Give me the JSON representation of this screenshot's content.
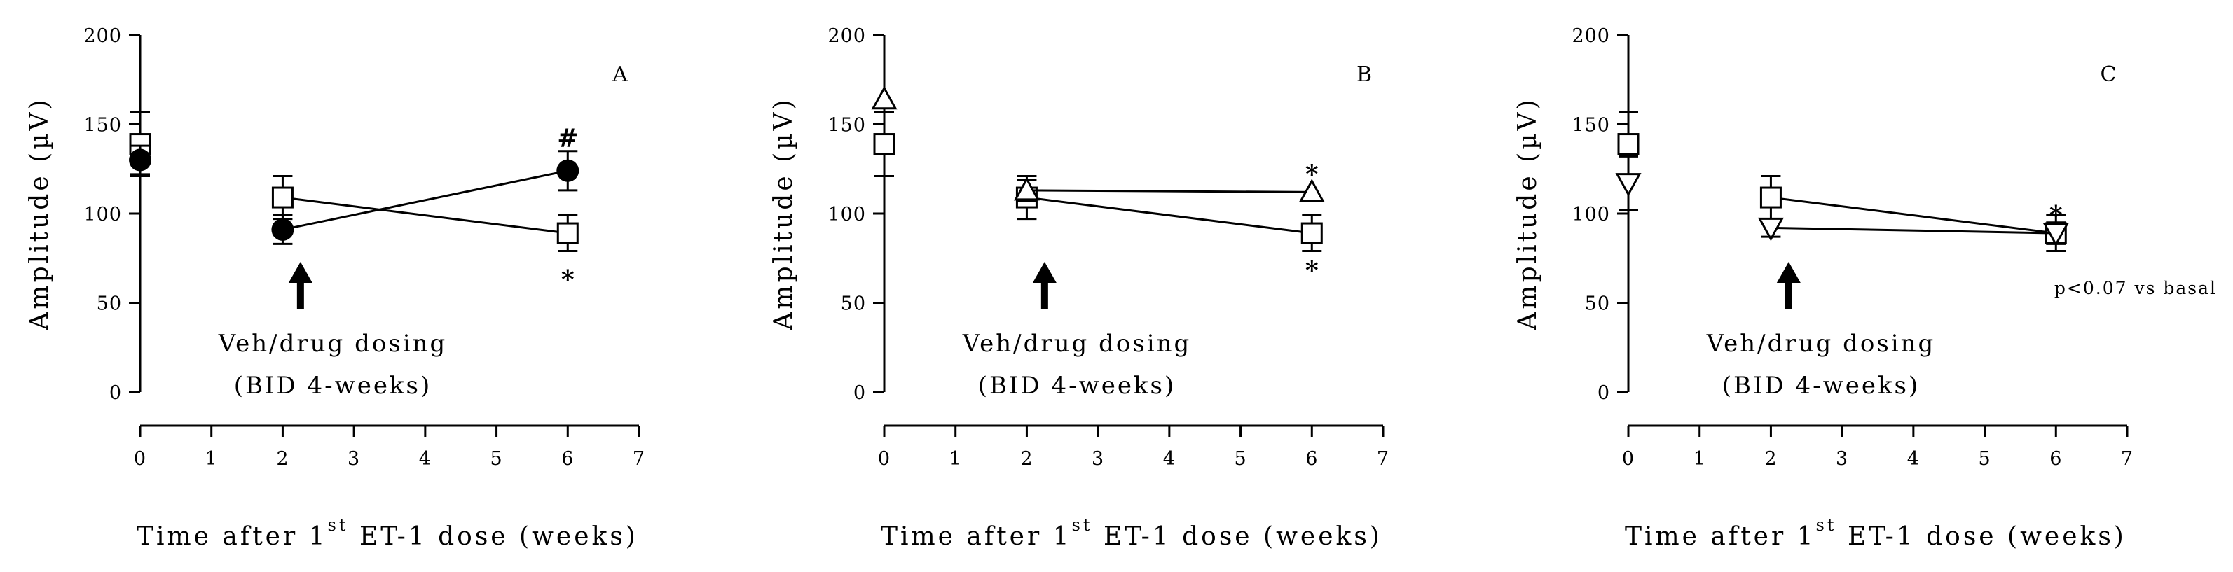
{
  "chart_data": [
    {
      "type": "line",
      "panel_label": "A",
      "xlabel_prefix": "Time after 1",
      "xlabel_sup": "st",
      "xlabel_suffix": " ET-1 dose (weeks)",
      "ylabel": "Amplitude (µV)",
      "xlim": [
        0,
        7
      ],
      "ylim": [
        0,
        200
      ],
      "xticks": [
        "0",
        "1",
        "2",
        "3",
        "4",
        "5",
        "6",
        "7"
      ],
      "yticks": [
        "0",
        "50",
        "100",
        "150",
        "200"
      ],
      "grid": false,
      "dosing_arrow_x": 2.25,
      "dosing_text": [
        "Veh/drug dosing",
        "(BID 4-weeks)"
      ],
      "series": [
        {
          "marker": "square-open",
          "x": [
            0,
            2,
            6
          ],
          "y": [
            139,
            109,
            89
          ],
          "err": [
            18,
            12,
            10
          ],
          "connect_from_index": 1
        },
        {
          "marker": "circle-filled",
          "x": [
            0,
            2,
            6
          ],
          "y": [
            130,
            91,
            124
          ],
          "err": [
            8,
            8,
            11
          ],
          "connect_from_index": 1
        }
      ],
      "significance": [
        {
          "text": "#",
          "x": 6,
          "y": 142
        },
        {
          "text": "*",
          "x": 6,
          "y": 63
        }
      ],
      "note": ""
    },
    {
      "type": "line",
      "panel_label": "B",
      "xlabel_prefix": "Time after 1",
      "xlabel_sup": "st",
      "xlabel_suffix": " ET-1 dose (weeks)",
      "ylabel": "Amplitude (µV)",
      "xlim": [
        0,
        7
      ],
      "ylim": [
        0,
        200
      ],
      "xticks": [
        "0",
        "1",
        "2",
        "3",
        "4",
        "5",
        "6",
        "7"
      ],
      "yticks": [
        "0",
        "50",
        "100",
        "150",
        "200"
      ],
      "grid": false,
      "dosing_arrow_x": 2.25,
      "dosing_text": [
        "Veh/drug dosing",
        "(BID 4-weeks)"
      ],
      "series": [
        {
          "marker": "square-open",
          "x": [
            0,
            2,
            6
          ],
          "y": [
            139,
            109,
            89
          ],
          "err": [
            18,
            12,
            10
          ],
          "connect_from_index": 1
        },
        {
          "marker": "triangle-up-open",
          "x": [
            0,
            2,
            6
          ],
          "y": [
            164,
            113,
            112
          ],
          "err": [
            0,
            6,
            0
          ],
          "connect_from_index": 1
        }
      ],
      "significance": [
        {
          "text": "*",
          "x": 6,
          "y": 122
        },
        {
          "text": "*",
          "x": 6,
          "y": 68
        }
      ],
      "note": ""
    },
    {
      "type": "line",
      "panel_label": "C",
      "xlabel_prefix": "Time after 1",
      "xlabel_sup": "st",
      "xlabel_suffix": " ET-1 dose (weeks)",
      "ylabel": "Amplitude (µV)",
      "xlim": [
        0,
        7
      ],
      "ylim": [
        0,
        200
      ],
      "xticks": [
        "0",
        "1",
        "2",
        "3",
        "4",
        "5",
        "6",
        "7"
      ],
      "yticks": [
        "0",
        "50",
        "100",
        "150",
        "200"
      ],
      "grid": false,
      "dosing_arrow_x": 2.25,
      "dosing_text": [
        "Veh/drug dosing",
        "(BID 4-weeks)"
      ],
      "series": [
        {
          "marker": "square-open",
          "x": [
            0,
            2,
            6
          ],
          "y": [
            139,
            109,
            89
          ],
          "err": [
            18,
            12,
            10
          ],
          "connect_from_index": 1
        },
        {
          "marker": "triangle-down-open",
          "x": [
            0,
            2,
            6
          ],
          "y": [
            117,
            92,
            89
          ],
          "err": [
            15,
            5,
            6
          ],
          "connect_from_index": 1
        }
      ],
      "significance": [
        {
          "text": "*",
          "x": 6,
          "y": 99
        }
      ],
      "note": "p<0.07 vs basal"
    }
  ]
}
